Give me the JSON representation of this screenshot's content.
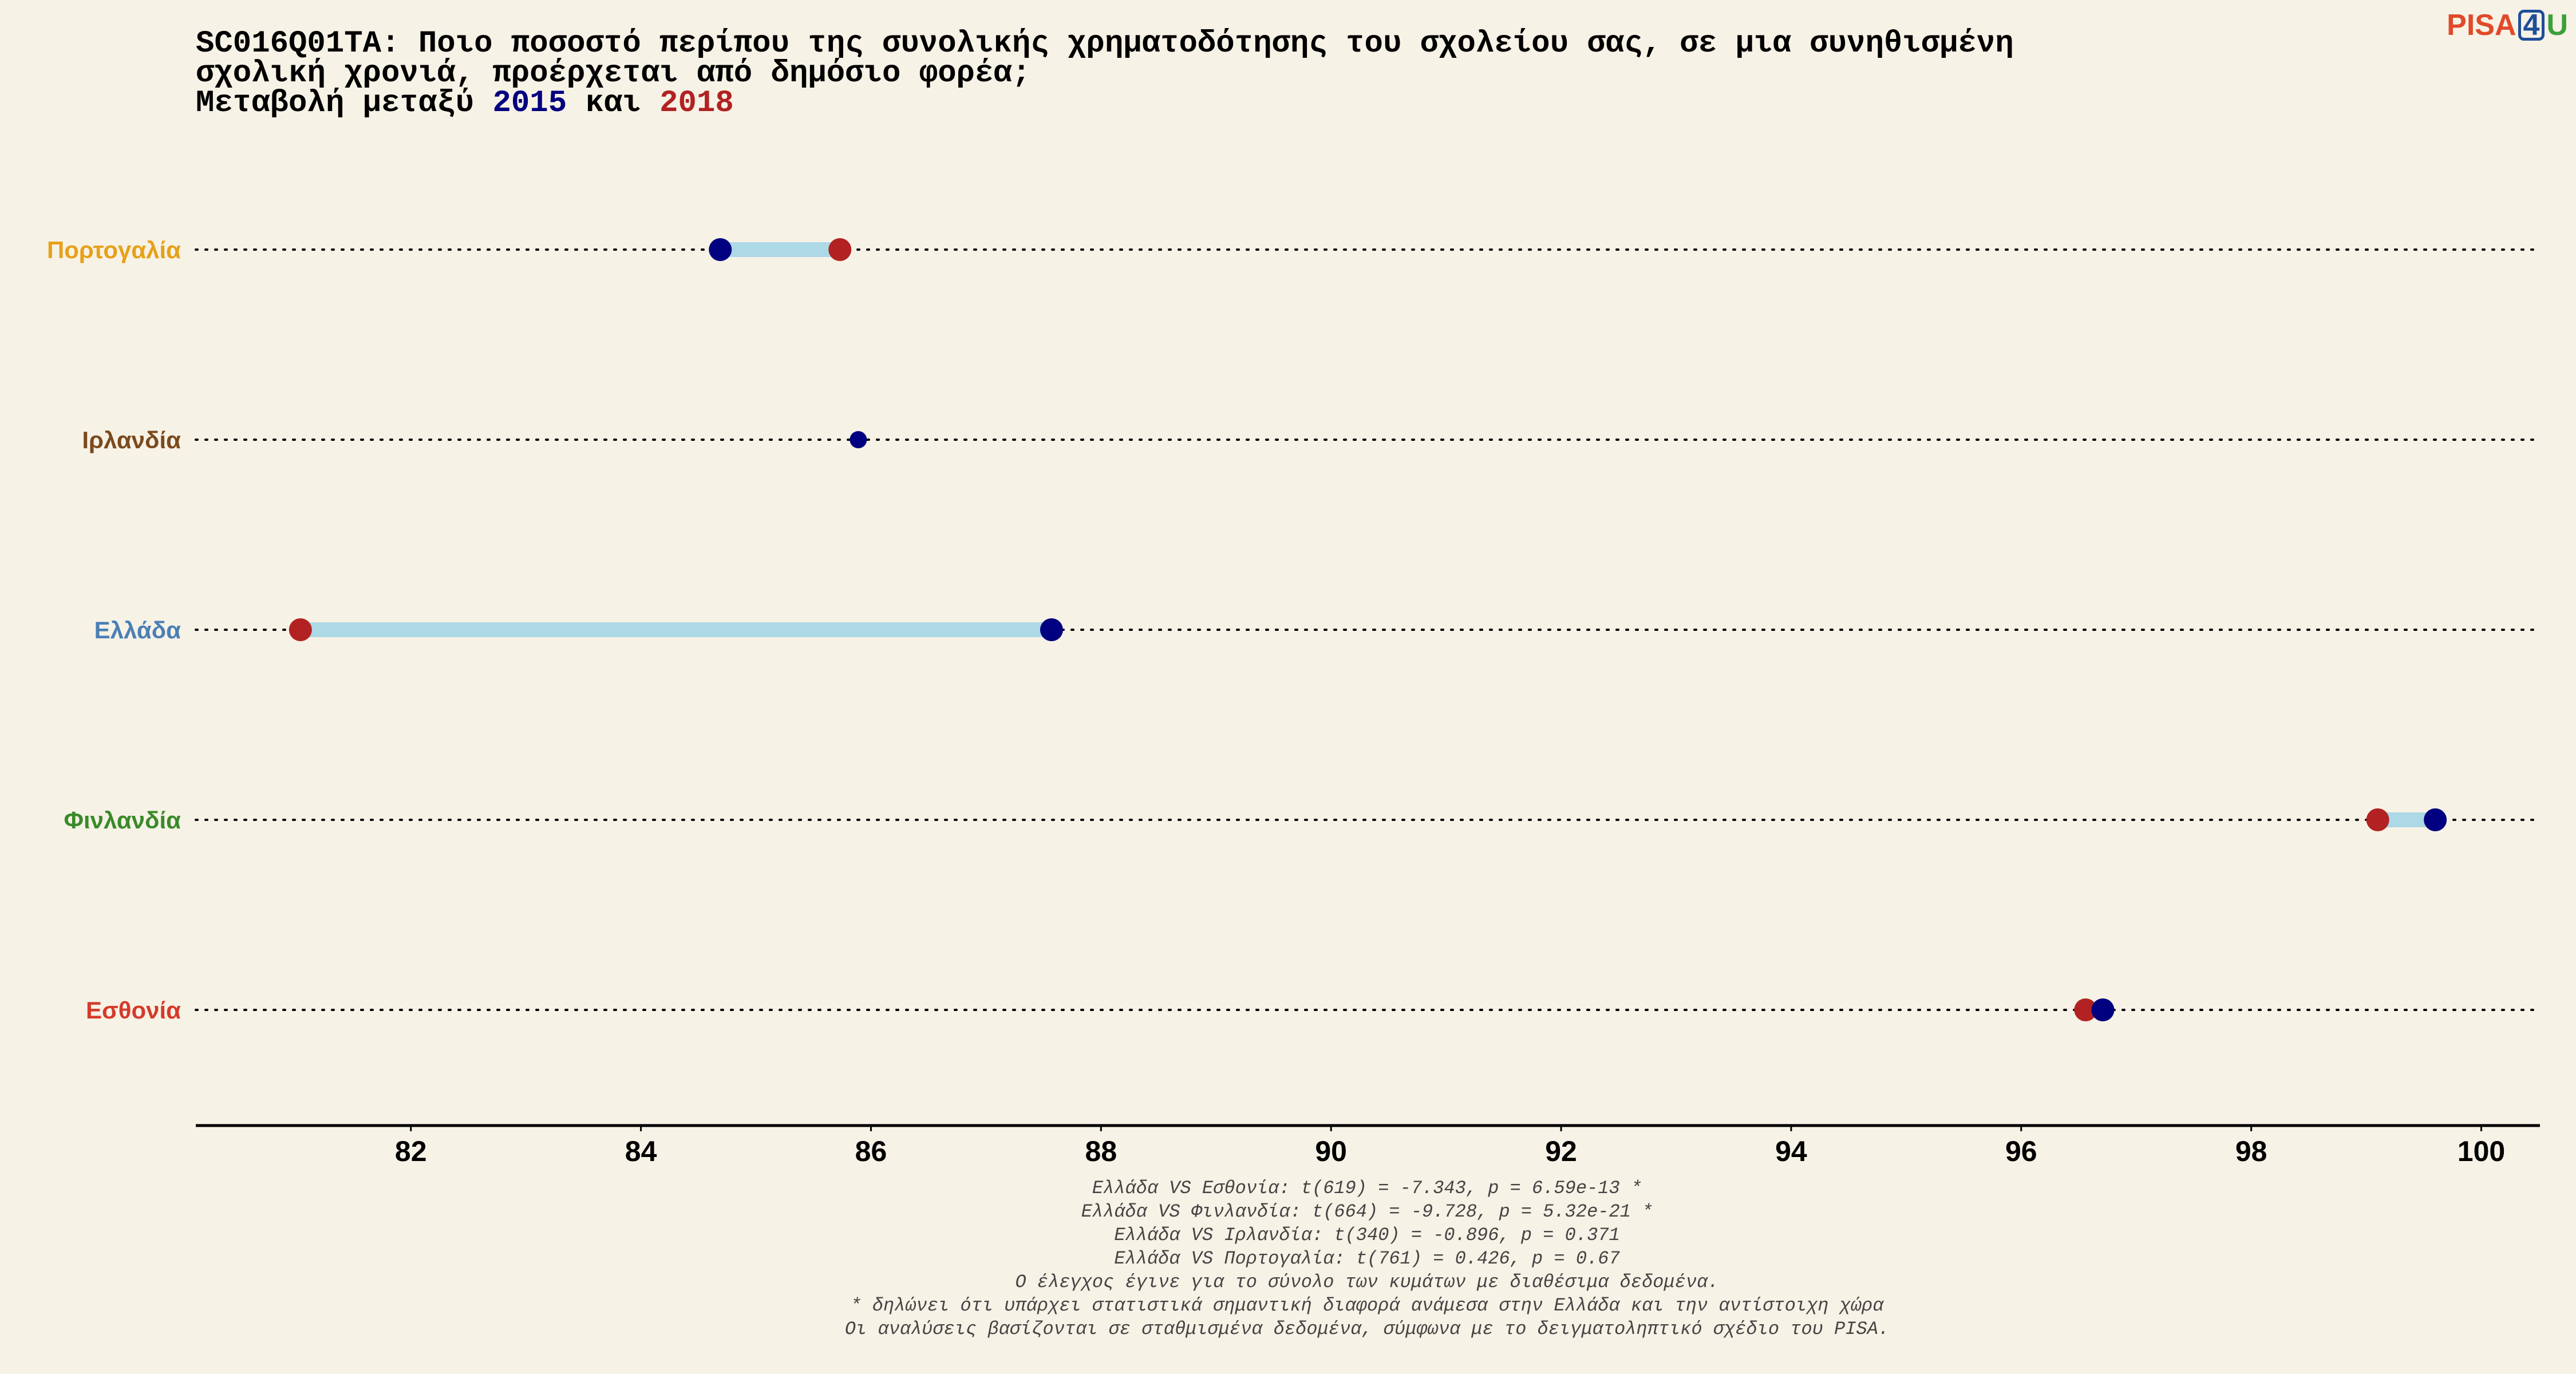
{
  "chart_data": {
    "type": "dumbbell",
    "title": "SC016Q01TA: Ποιο ποσοστό περίπου της συνολικής χρηματοδότησης του σχολείου σας, σε μια συνηθισμένη σχολική χρονιά, προέρχεται από δημόσιο φορέα;",
    "subtitle_parts": [
      "Μεταβολή μεταξύ",
      "και"
    ],
    "categories": [
      "Πορτογαλία",
      "Ιρλανδία",
      "Ελλάδα",
      "Φινλανδία",
      "Εσθονία"
    ],
    "category_colors": [
      "#e6a118",
      "#7a4a1e",
      "#4a7fb5",
      "#3a8a2a",
      "#d63a2a"
    ],
    "series": [
      {
        "name": "2015",
        "color": "#000080",
        "values": [
          84.69,
          85.89,
          87.57,
          99.6,
          96.71
        ]
      },
      {
        "name": "2018",
        "color": "#b22222",
        "values": [
          85.73,
          null,
          81.04,
          99.1,
          96.56
        ]
      }
    ],
    "connector_color": "#add8e6",
    "xlim": [
      80.13,
      100.51
    ],
    "xticks": [
      82,
      84,
      86,
      88,
      90,
      92,
      94,
      96,
      98,
      100
    ],
    "footnotes": [
      "Ελλάδα VS Εσθονία: t(619) = -7.343, p = 6.59e-13 *",
      "Ελλάδα VS Φινλανδία: t(664) = -9.728, p = 5.32e-21 *",
      "Ελλάδα VS Ιρλανδία: t(340) = -0.896, p = 0.371",
      "Ελλάδα VS Πορτογαλία: t(761) = 0.426, p = 0.67",
      "Ο έλεγχος έγινε για το σύνολο των κυμάτων με διαθέσιμα δεδομένα.",
      "* δηλώνει ότι υπάρχει στατιστικά σημαντική διαφορά ανάμεσα στην Ελλάδα και την αντίστοιχη χώρα",
      "Οι αναλύσεις βασίζονται σε σταθμισμένα δεδομένα, σύμφωνα με το δειγματοληπτικό σχέδιο του PISA."
    ]
  },
  "logo": {
    "parts": [
      {
        "text": "PISA",
        "color": "#e04a2a"
      },
      {
        "text": "4",
        "color": "#1f4e9a"
      },
      {
        "text": "U",
        "color": "#3aa03a"
      }
    ]
  }
}
